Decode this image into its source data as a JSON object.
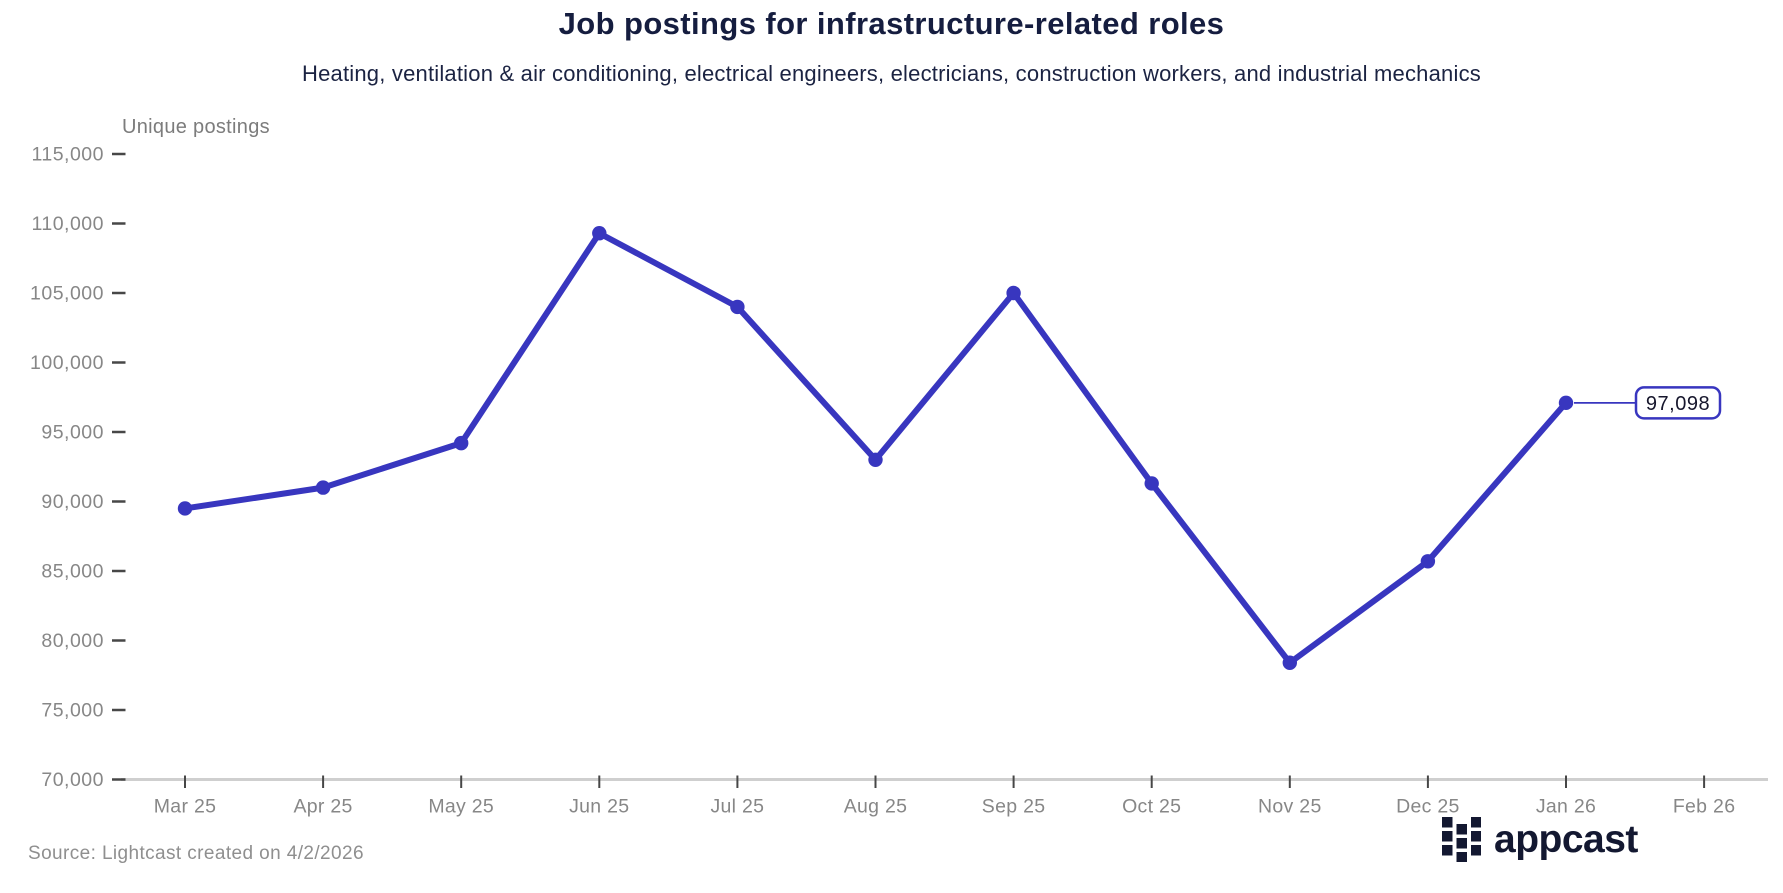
{
  "header": {
    "title": "Job postings for infrastructure-related roles",
    "subtitle": "Heating, ventilation & air conditioning, electrical engineers, electricians, construction workers, and industrial mechanics"
  },
  "chart_data": {
    "type": "line",
    "title": "Job postings for infrastructure-related roles",
    "subtitle": "Heating, ventilation & air conditioning, electrical engineers, electricians, construction workers, and industrial mechanics",
    "ylabel": "Unique postings",
    "xlabel": "",
    "categories": [
      "Mar 25",
      "Apr 25",
      "May 25",
      "Jun 25",
      "Jul 25",
      "Aug 25",
      "Sep 25",
      "Oct 25",
      "Nov 25",
      "Dec 25",
      "Jan 26",
      "Feb 26"
    ],
    "series": [
      {
        "name": "Unique postings",
        "values": [
          89500,
          91000,
          94200,
          109300,
          104000,
          93000,
          105000,
          91300,
          78400,
          85700,
          97098,
          null
        ]
      }
    ],
    "ylim": [
      70000,
      115000
    ],
    "y_tick_step": 5000,
    "y_tick_labels": [
      "70,000",
      "75,000",
      "80,000",
      "85,000",
      "90,000",
      "95,000",
      "100,000",
      "105,000",
      "110,000",
      "115,000"
    ],
    "grid": false,
    "legend": "none",
    "marker": "circle",
    "end_label": "97,098"
  },
  "footer": {
    "source": "Source: Lightcast created on 4/2/2026",
    "logo_text": "appcast"
  },
  "colors": {
    "accent_line": "#3836bf",
    "title_text": "#151d3f",
    "axis_label_text": "#878787",
    "axis_line": "#cfcfcf",
    "tick_mark": "#474747",
    "annotation_text": "#16162c",
    "annotation_fill": "#ffffff",
    "logo_navy": "#131831"
  }
}
